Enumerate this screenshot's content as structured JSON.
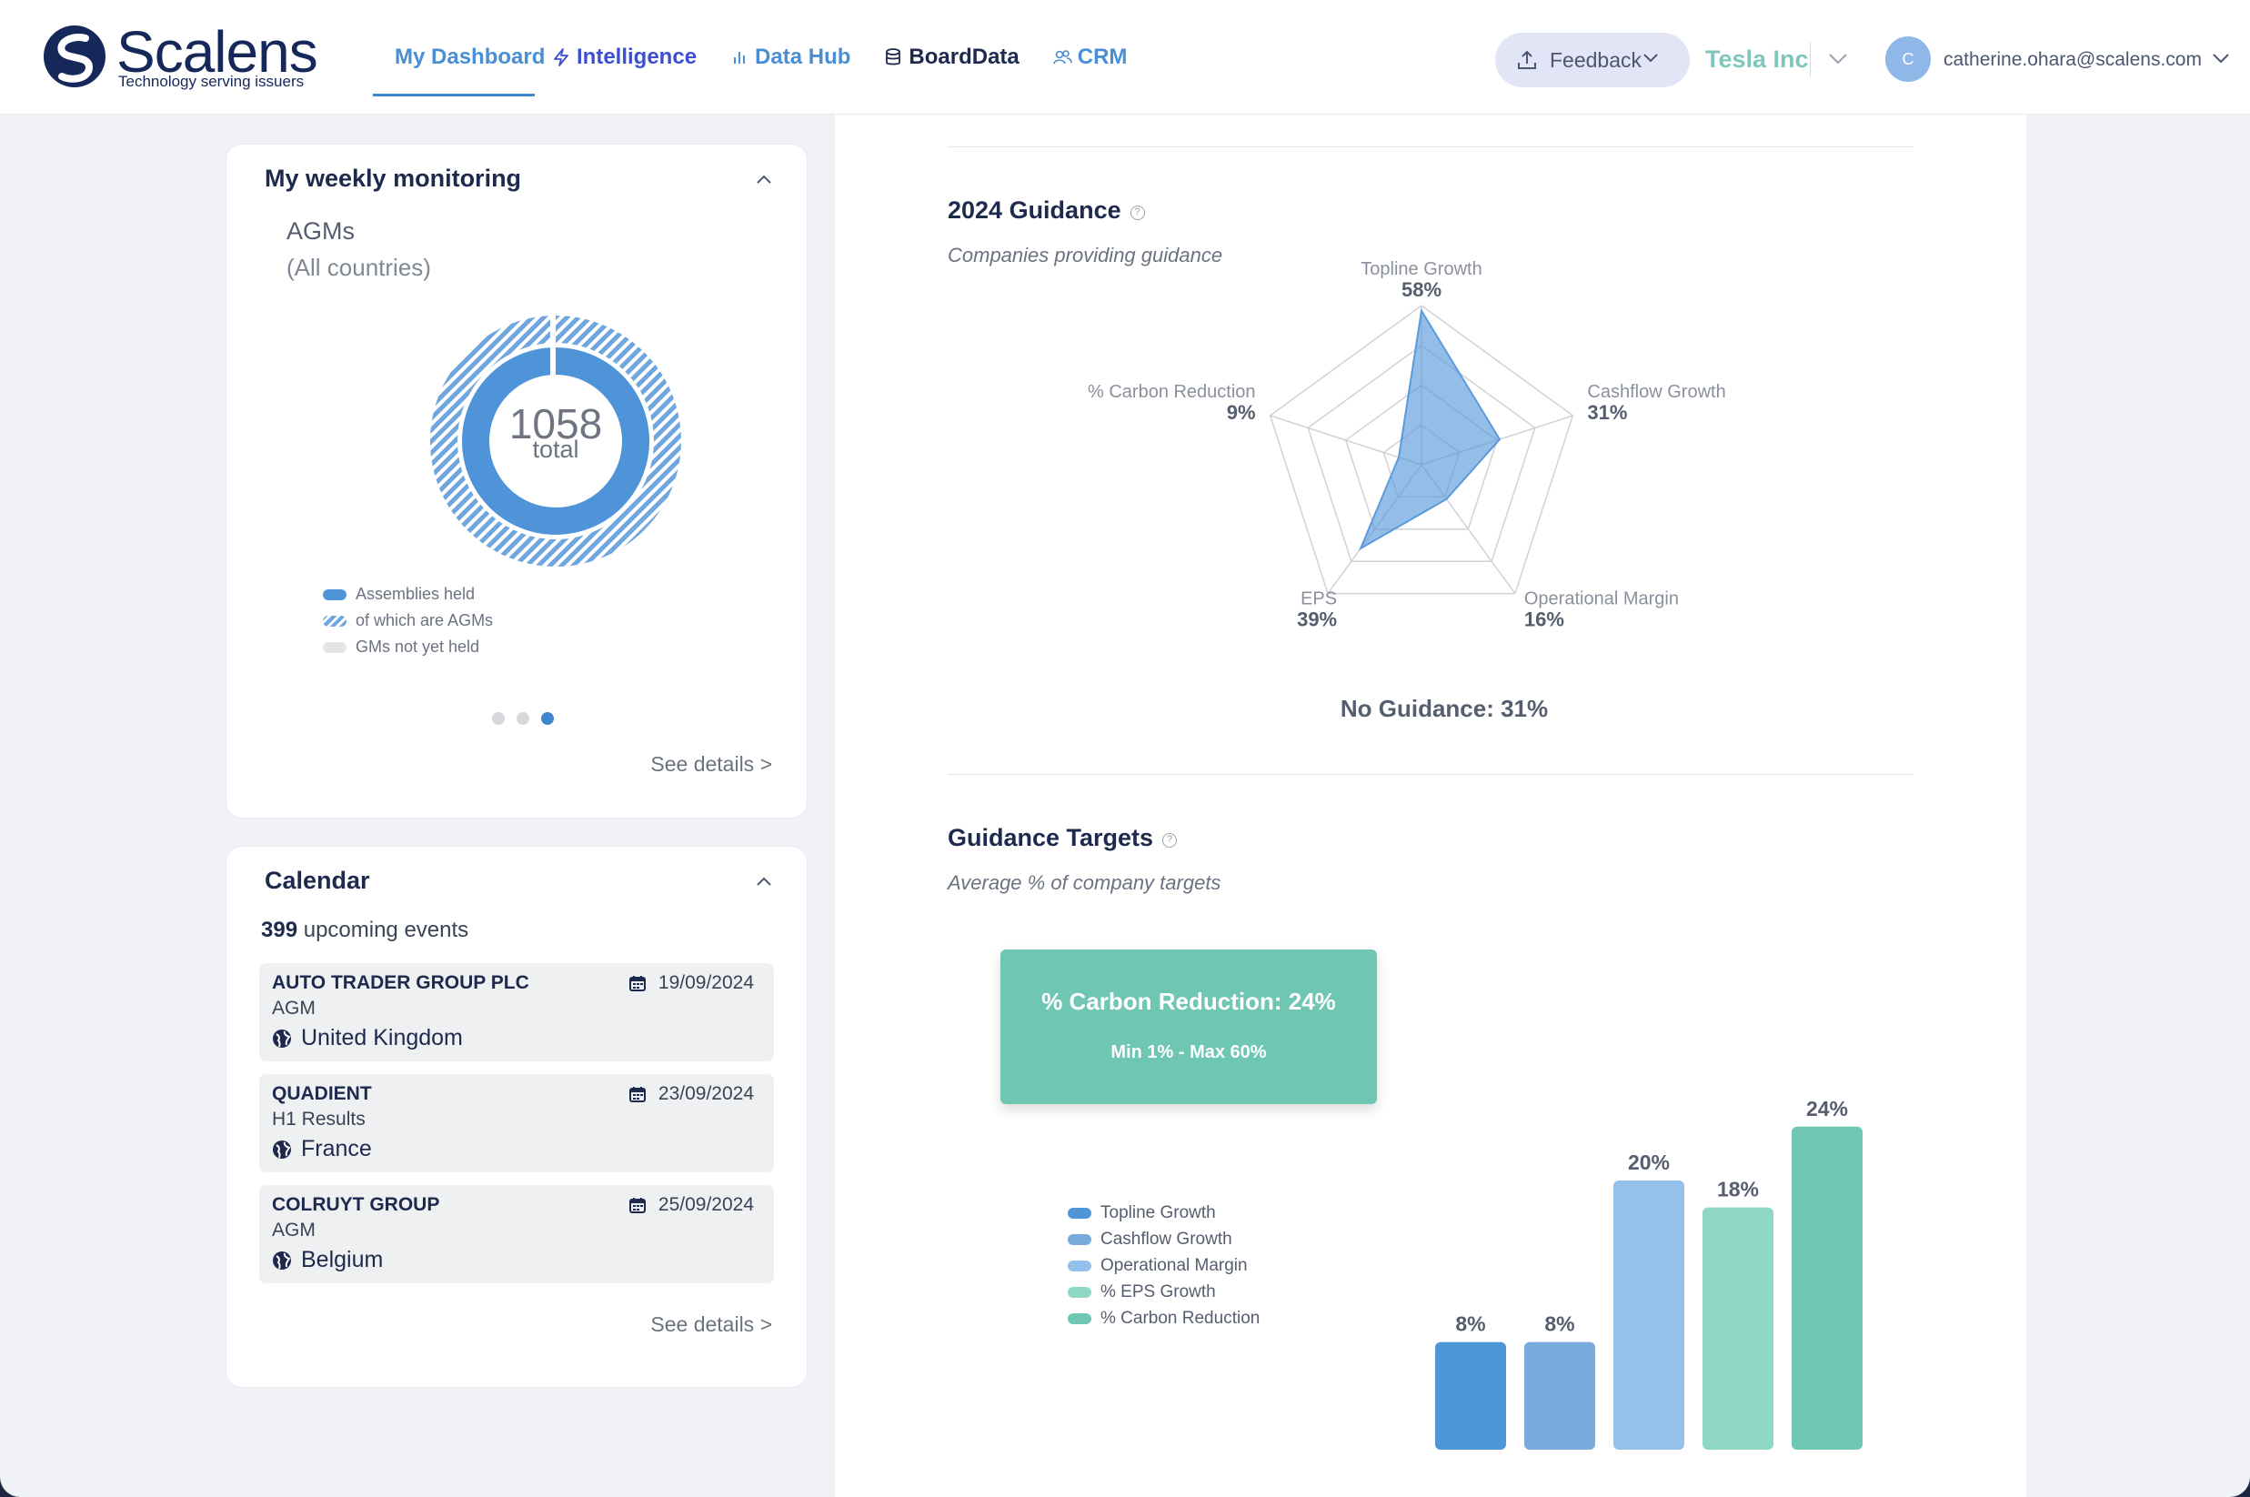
{
  "brand": {
    "name": "Scalens",
    "tagline": "Technology serving issuers"
  },
  "nav": [
    {
      "label": "My Dashboard",
      "icon": "home-icon",
      "active": true
    },
    {
      "label": "Intelligence",
      "icon": "lightning-icon"
    },
    {
      "label": "Data Hub",
      "icon": "bar-chart-icon"
    },
    {
      "label": "BoardData",
      "icon": "database-icon"
    },
    {
      "label": "CRM",
      "icon": "users-icon"
    }
  ],
  "header": {
    "feedback_label": "Feedback",
    "company": "Tesla Inc",
    "avatar_initial": "C",
    "user_email": "catherine.ohara@scalens.com"
  },
  "monitoring": {
    "title": "My weekly monitoring",
    "agm_title": "AGMs",
    "agm_subtitle": "(All countries)",
    "total_value": "1058",
    "total_label": "total",
    "legend": [
      "Assemblies held",
      "of which are AGMs",
      "GMs not yet held"
    ],
    "see_details": "See details >",
    "carousel_active": 3
  },
  "calendar": {
    "title": "Calendar",
    "count": "399",
    "count_label": "upcoming events",
    "events": [
      {
        "name": "AUTO TRADER GROUP PLC",
        "type": "AGM",
        "country": "United Kingdom",
        "date": "19/09/2024"
      },
      {
        "name": "QUADIENT",
        "type": "H1 Results",
        "country": "France",
        "date": "23/09/2024"
      },
      {
        "name": "COLRUYT GROUP",
        "type": "AGM",
        "country": "Belgium",
        "date": "25/09/2024"
      }
    ],
    "see_details": "See details >"
  },
  "guidance": {
    "title": "2024 Guidance",
    "subtitle": "Companies providing guidance",
    "no_guidance": "No Guidance: 31%"
  },
  "targets": {
    "title": "Guidance Targets",
    "subtitle": "Average % of company targets",
    "tooltip_title": "% Carbon Reduction: 24%",
    "tooltip_range": "Min 1% - Max 60%"
  },
  "chart_data": [
    {
      "type": "radar",
      "categories": [
        "Topline Growth",
        "Cashflow Growth",
        "Operational Margin",
        "EPS",
        "% Carbon Reduction"
      ],
      "values": [
        58,
        31,
        16,
        39,
        9
      ],
      "value_labels": [
        "58%",
        "31%",
        "16%",
        "39%",
        "9%"
      ],
      "color": "#5b9bdc"
    },
    {
      "type": "bar",
      "categories": [
        "Topline Growth",
        "Cashflow Growth",
        "Operational Margin",
        "% EPS Growth",
        "% Carbon Reduction"
      ],
      "values": [
        8,
        8,
        20,
        18,
        24
      ],
      "value_labels": [
        "8%",
        "8%",
        "20%",
        "18%",
        "24%"
      ],
      "colors": [
        "#4f96d8",
        "#78aadc",
        "#93c1e9",
        "#8ed8c5",
        "#6ec6b3"
      ],
      "legend_placement": "left"
    }
  ],
  "colors": {
    "accent": "#3f86cf",
    "teal": "#6ec6b3",
    "navy": "#16275a"
  }
}
